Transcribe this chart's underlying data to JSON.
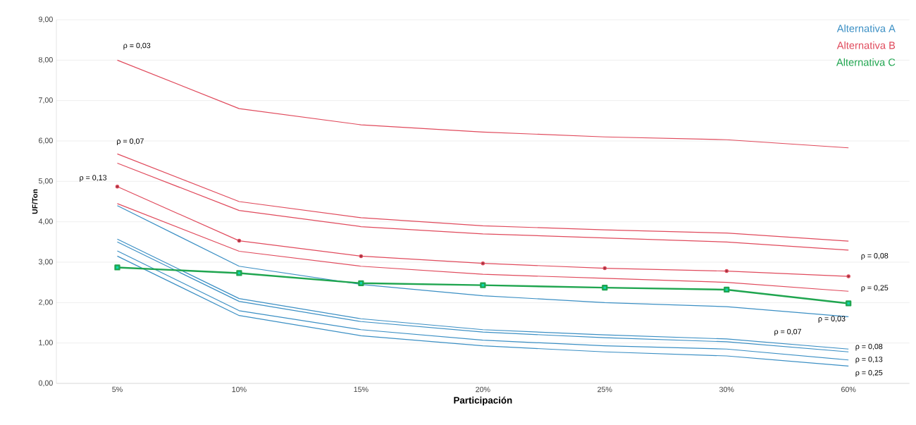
{
  "chart_data": {
    "type": "line",
    "xlabel": "Participación",
    "ylabel": "UF/Ton",
    "categories": [
      "5%",
      "10%",
      "15%",
      "20%",
      "25%",
      "30%",
      "60%"
    ],
    "ylim": [
      0,
      9
    ],
    "yticks": [
      {
        "value": 0,
        "label": "0,00"
      },
      {
        "value": 1,
        "label": "1,00"
      },
      {
        "value": 2,
        "label": "2,00"
      },
      {
        "value": 3,
        "label": "3,00"
      },
      {
        "value": 4,
        "label": "4,00"
      },
      {
        "value": 5,
        "label": "5,00"
      },
      {
        "value": 6,
        "label": "6,00"
      },
      {
        "value": 7,
        "label": "7,00"
      },
      {
        "value": 8,
        "label": "8,00"
      },
      {
        "value": 9,
        "label": "9,00"
      }
    ],
    "grid": "y",
    "legend": "top right",
    "line_style": "solid",
    "series": [
      {
        "name": "Alternativa A",
        "color": "#3b8fc4",
        "marker": "none",
        "values": [
          4.4,
          2.9,
          2.45,
          2.17,
          2.0,
          1.9,
          1.65
        ]
      },
      {
        "color": "#3b8fc4",
        "marker": "none",
        "values": [
          3.57,
          2.1,
          1.6,
          1.33,
          1.2,
          1.1,
          0.85
        ]
      },
      {
        "color": "#3b8fc4",
        "marker": "none",
        "values": [
          3.5,
          2.03,
          1.53,
          1.27,
          1.13,
          1.03,
          0.78
        ]
      },
      {
        "color": "#3b8fc4",
        "marker": "none",
        "values": [
          3.28,
          1.8,
          1.33,
          1.07,
          0.93,
          0.85,
          0.58
        ]
      },
      {
        "color": "#3b8fc4",
        "marker": "none",
        "values": [
          3.15,
          1.68,
          1.18,
          0.93,
          0.78,
          0.68,
          0.43
        ]
      },
      {
        "name": "Alternativa B",
        "color": "#e04a5c",
        "marker": "none",
        "values": [
          8.0,
          6.8,
          6.4,
          6.22,
          6.1,
          6.03,
          5.83
        ]
      },
      {
        "color": "#e04a5c",
        "marker": "none",
        "values": [
          5.68,
          4.5,
          4.1,
          3.9,
          3.8,
          3.72,
          3.52
        ]
      },
      {
        "color": "#e04a5c",
        "marker": "none",
        "values": [
          5.45,
          4.28,
          3.88,
          3.7,
          3.6,
          3.5,
          3.3
        ]
      },
      {
        "color": "#e04a5c",
        "marker": "circle",
        "values": [
          4.87,
          3.53,
          3.15,
          2.97,
          2.85,
          2.78,
          2.65
        ]
      },
      {
        "color": "#e04a5c",
        "marker": "none",
        "values": [
          4.45,
          3.27,
          2.9,
          2.7,
          2.6,
          2.5,
          2.28
        ]
      },
      {
        "name": "Alternativa C",
        "color": "#1fa54f",
        "marker": "square",
        "values": [
          2.87,
          2.73,
          2.48,
          2.43,
          2.37,
          2.32,
          1.98
        ]
      }
    ],
    "annotations": [
      {
        "text": "ρ = 0,03",
        "x": "5%",
        "y": 8.0
      },
      {
        "text": "ρ = 0,07",
        "x": "5%",
        "y": 5.68
      },
      {
        "text": "ρ = 0,13",
        "x": "5%",
        "y": 4.87
      },
      {
        "text": "ρ = 0,08",
        "x": "60%",
        "y": 3.3
      },
      {
        "text": "ρ = 0,25",
        "x": "60%",
        "y": 2.28
      },
      {
        "text": "ρ = 0,03",
        "x": "60%",
        "y": 1.65
      },
      "ρ = 0,07",
      {
        "text": "ρ = 0,08",
        "x": "60%",
        "y": 0.78
      },
      {
        "text": "ρ = 0,13",
        "x": "60%",
        "y": 0.58
      },
      {
        "text": "ρ = 0,25",
        "x": "60%",
        "y": 0.43
      }
    ]
  }
}
